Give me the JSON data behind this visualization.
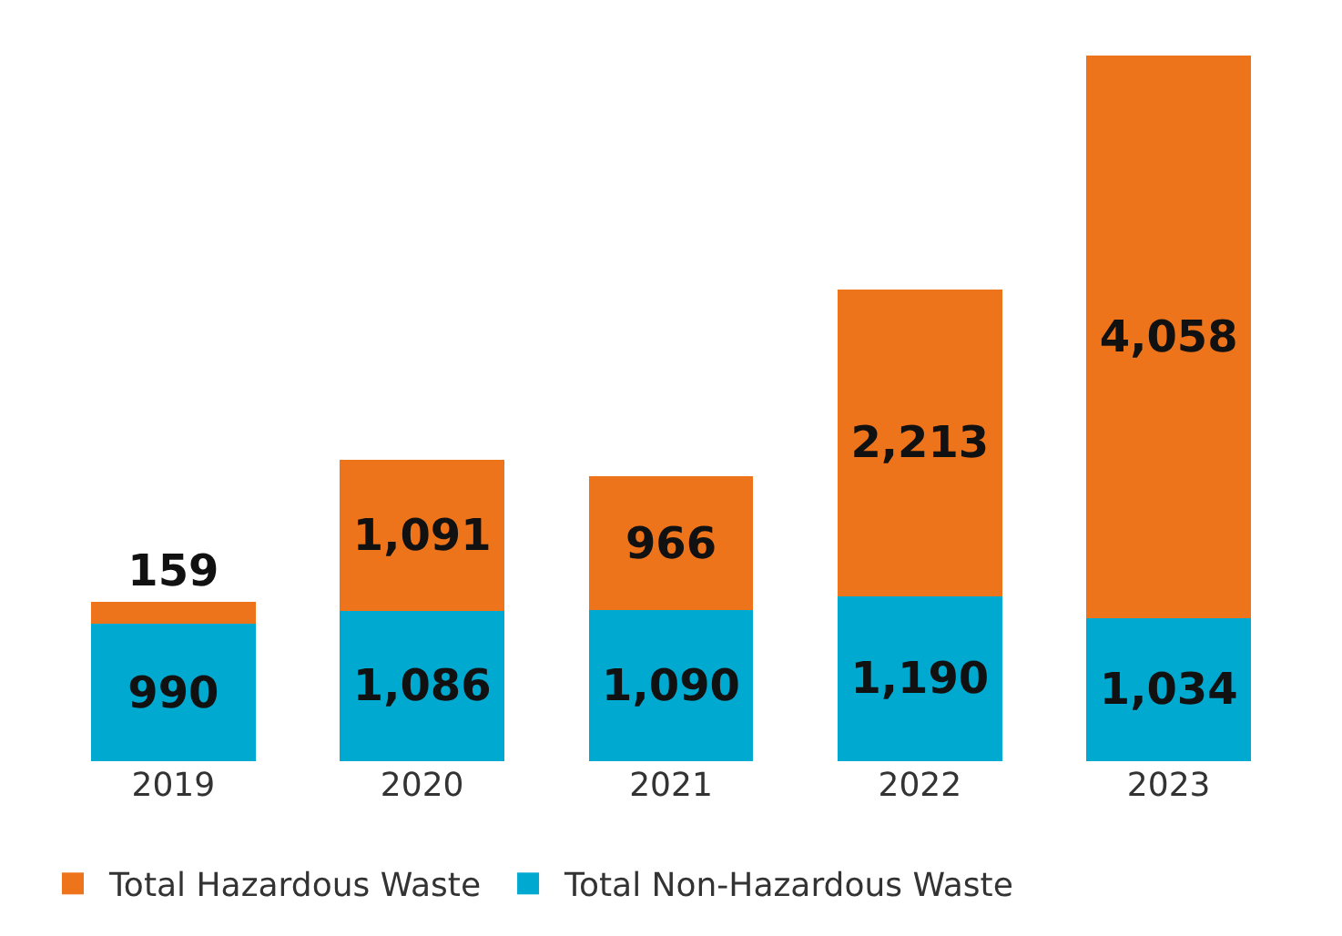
{
  "chart_data": {
    "type": "bar",
    "stacked": true,
    "legend": "bottom left",
    "categories": [
      "2019",
      "2020",
      "2021",
      "2022",
      "2023"
    ],
    "series": [
      {
        "name": "Total Non-Hazardous Waste",
        "color": "#00a9d0",
        "values": [
          990,
          1086,
          1090,
          1190,
          1034
        ],
        "value_labels": [
          "990",
          "1,086",
          "1,090",
          "1,190",
          "1,034"
        ]
      },
      {
        "name": "Total Hazardous Waste",
        "color": "#ee741c",
        "values": [
          159,
          1091,
          966,
          2213,
          4058
        ],
        "value_labels": [
          "159",
          "1,091",
          "966",
          "2,213",
          "4,058"
        ]
      }
    ]
  }
}
